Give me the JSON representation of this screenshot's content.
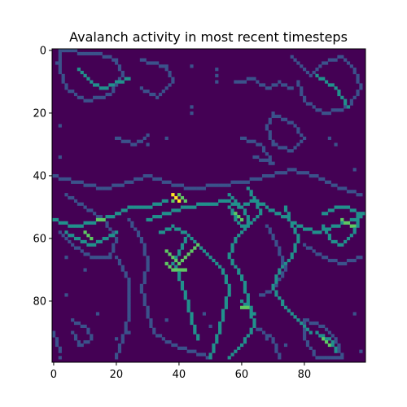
{
  "chart_data": {
    "type": "heatmap",
    "title": "Avalanch activity in most recent timesteps",
    "xlabel": "",
    "ylabel": "",
    "grid_size": [
      100,
      100
    ],
    "xlim": [
      -0.5,
      99.5
    ],
    "ylim": [
      99.5,
      -0.5
    ],
    "x_ticks": [
      0,
      20,
      40,
      60,
      80
    ],
    "y_ticks": [
      0,
      20,
      40,
      60,
      80
    ],
    "colormap": "viridis",
    "colorbar": false,
    "grid": false,
    "value_range": [
      0,
      4
    ],
    "background_value": 0,
    "colors": {
      "0": "#440154",
      "1": "#3b528b",
      "2": "#21918c",
      "3": "#5ec962",
      "4": "#fde725"
    },
    "regions": [
      {
        "kind": "polyline",
        "value": 1,
        "points": [
          [
            2,
            0
          ],
          [
            14,
            1
          ],
          [
            20,
            3
          ],
          [
            22,
            8
          ],
          [
            18,
            14
          ],
          [
            10,
            16
          ],
          [
            4,
            12
          ],
          [
            2,
            6
          ],
          [
            2,
            0
          ]
        ]
      },
      {
        "kind": "polyline",
        "value": 2,
        "points": [
          [
            8,
            6
          ],
          [
            12,
            10
          ],
          [
            16,
            12
          ],
          [
            20,
            10
          ],
          [
            24,
            9
          ]
        ]
      },
      {
        "kind": "polyline",
        "value": 1,
        "points": [
          [
            28,
            3
          ],
          [
            36,
            5
          ],
          [
            38,
            10
          ],
          [
            33,
            15
          ],
          [
            28,
            12
          ]
        ]
      },
      {
        "kind": "polyline",
        "value": 1,
        "points": [
          [
            76,
            2
          ],
          [
            82,
            8
          ],
          [
            86,
            4
          ],
          [
            92,
            2
          ],
          [
            96,
            6
          ],
          [
            98,
            12
          ],
          [
            94,
            18
          ],
          [
            86,
            20
          ],
          [
            80,
            16
          ],
          [
            78,
            10
          ]
        ]
      },
      {
        "kind": "polyline",
        "value": 2,
        "points": [
          [
            84,
            8
          ],
          [
            90,
            12
          ],
          [
            94,
            18
          ]
        ]
      },
      {
        "kind": "polyline",
        "value": 1,
        "points": [
          [
            58,
            10
          ],
          [
            64,
            9
          ],
          [
            68,
            12
          ],
          [
            72,
            10
          ],
          [
            76,
            12
          ]
        ]
      },
      {
        "kind": "polyline",
        "value": 1,
        "points": [
          [
            70,
            20
          ],
          [
            76,
            23
          ],
          [
            80,
            28
          ],
          [
            76,
            32
          ],
          [
            70,
            30
          ],
          [
            68,
            24
          ],
          [
            70,
            20
          ]
        ]
      },
      {
        "kind": "polyline",
        "value": 1,
        "points": [
          [
            60,
            28
          ],
          [
            66,
            30
          ],
          [
            70,
            36
          ],
          [
            64,
            34
          ]
        ]
      },
      {
        "kind": "polyline",
        "value": 1,
        "points": [
          [
            20,
            28
          ],
          [
            26,
            30
          ],
          [
            30,
            27
          ]
        ]
      },
      {
        "kind": "polyline",
        "value": 1,
        "points": [
          [
            0,
            40
          ],
          [
            8,
            42
          ],
          [
            16,
            44
          ],
          [
            24,
            42
          ],
          [
            30,
            40
          ],
          [
            36,
            42
          ],
          [
            44,
            44
          ],
          [
            52,
            43
          ],
          [
            60,
            42
          ],
          [
            68,
            40
          ],
          [
            76,
            38
          ],
          [
            84,
            40
          ],
          [
            92,
            44
          ],
          [
            98,
            46
          ]
        ]
      },
      {
        "kind": "polyline",
        "value": 1,
        "points": [
          [
            4,
            46
          ],
          [
            10,
            50
          ],
          [
            16,
            54
          ],
          [
            20,
            60
          ],
          [
            18,
            66
          ],
          [
            12,
            66
          ],
          [
            6,
            62
          ],
          [
            2,
            58
          ]
        ]
      },
      {
        "kind": "polyline",
        "value": 2,
        "points": [
          [
            0,
            54
          ],
          [
            6,
            56
          ],
          [
            12,
            55
          ],
          [
            18,
            53
          ],
          [
            24,
            50
          ],
          [
            30,
            50
          ],
          [
            36,
            48
          ]
        ]
      },
      {
        "kind": "polyline",
        "value": 2,
        "points": [
          [
            4,
            58
          ],
          [
            8,
            60
          ],
          [
            12,
            62
          ],
          [
            16,
            60
          ],
          [
            20,
            58
          ]
        ]
      },
      {
        "kind": "polyline",
        "value": 3,
        "points": [
          [
            10,
            58
          ],
          [
            12,
            60
          ]
        ]
      },
      {
        "kind": "polyline",
        "value": 3,
        "points": [
          [
            14,
            54
          ],
          [
            16,
            54
          ]
        ]
      },
      {
        "kind": "polyline",
        "value": 2,
        "points": [
          [
            30,
            54
          ],
          [
            36,
            52
          ],
          [
            42,
            50
          ],
          [
            48,
            49
          ],
          [
            56,
            48
          ],
          [
            60,
            50
          ],
          [
            64,
            47
          ],
          [
            68,
            50
          ],
          [
            72,
            52
          ],
          [
            78,
            56
          ],
          [
            84,
            58
          ],
          [
            90,
            56
          ],
          [
            96,
            54
          ],
          [
            99,
            52
          ]
        ]
      },
      {
        "kind": "polyline",
        "value": 2,
        "points": [
          [
            62,
            44
          ],
          [
            64,
            48
          ],
          [
            66,
            52
          ],
          [
            62,
            56
          ],
          [
            58,
            60
          ],
          [
            56,
            66
          ],
          [
            60,
            72
          ],
          [
            62,
            80
          ],
          [
            64,
            88
          ],
          [
            60,
            94
          ],
          [
            56,
            98
          ]
        ]
      },
      {
        "kind": "polyline",
        "value": 2,
        "points": [
          [
            56,
            46
          ],
          [
            60,
            50
          ],
          [
            62,
            54
          ],
          [
            60,
            58
          ]
        ]
      },
      {
        "kind": "polyline",
        "value": 2,
        "points": [
          [
            74,
            50
          ],
          [
            76,
            56
          ],
          [
            78,
            60
          ],
          [
            76,
            66
          ],
          [
            72,
            70
          ],
          [
            70,
            76
          ],
          [
            74,
            82
          ],
          [
            78,
            86
          ],
          [
            82,
            90
          ]
        ]
      },
      {
        "kind": "polyline",
        "value": 2,
        "points": [
          [
            34,
            58
          ],
          [
            38,
            56
          ],
          [
            42,
            58
          ],
          [
            46,
            62
          ],
          [
            50,
            66
          ],
          [
            54,
            70
          ],
          [
            56,
            76
          ],
          [
            54,
            84
          ],
          [
            52,
            92
          ],
          [
            50,
            98
          ]
        ]
      },
      {
        "kind": "polyline",
        "value": 1,
        "points": [
          [
            24,
            54
          ],
          [
            28,
            60
          ],
          [
            30,
            68
          ],
          [
            28,
            76
          ],
          [
            30,
            84
          ],
          [
            32,
            90
          ],
          [
            38,
            94
          ],
          [
            44,
            96
          ],
          [
            50,
            98
          ]
        ]
      },
      {
        "kind": "polyline",
        "value": 2,
        "points": [
          [
            42,
            60
          ],
          [
            40,
            64
          ],
          [
            38,
            68
          ],
          [
            40,
            72
          ],
          [
            42,
            78
          ],
          [
            44,
            86
          ],
          [
            46,
            92
          ]
        ]
      },
      {
        "kind": "polyline",
        "value": 1,
        "points": [
          [
            20,
            66
          ],
          [
            24,
            74
          ],
          [
            24,
            84
          ],
          [
            22,
            92
          ],
          [
            20,
            98
          ]
        ]
      },
      {
        "kind": "polyline",
        "value": 3,
        "points": [
          [
            36,
            64
          ],
          [
            38,
            66
          ],
          [
            40,
            68
          ],
          [
            42,
            66
          ],
          [
            44,
            64
          ],
          [
            46,
            62
          ]
        ]
      },
      {
        "kind": "polyline",
        "value": 3,
        "points": [
          [
            36,
            68
          ],
          [
            38,
            70
          ],
          [
            42,
            70
          ]
        ]
      },
      {
        "kind": "polyline",
        "value": 4,
        "points": [
          [
            38,
            46
          ],
          [
            40,
            48
          ]
        ]
      },
      {
        "kind": "polyline",
        "value": 3,
        "points": [
          [
            38,
            48
          ],
          [
            40,
            46
          ],
          [
            42,
            48
          ]
        ]
      },
      {
        "kind": "polyline",
        "value": 2,
        "points": [
          [
            56,
            50
          ],
          [
            58,
            54
          ],
          [
            60,
            56
          ]
        ]
      },
      {
        "kind": "polyline",
        "value": 3,
        "points": [
          [
            58,
            52
          ],
          [
            60,
            54
          ]
        ]
      },
      {
        "kind": "polyline",
        "value": 2,
        "points": [
          [
            60,
            80
          ],
          [
            62,
            82
          ],
          [
            64,
            84
          ]
        ]
      },
      {
        "kind": "polyline",
        "value": 3,
        "points": [
          [
            60,
            82
          ],
          [
            62,
            82
          ]
        ]
      },
      {
        "kind": "polyline",
        "value": 2,
        "points": [
          [
            86,
            52
          ],
          [
            90,
            50
          ],
          [
            94,
            50
          ],
          [
            98,
            52
          ],
          [
            96,
            58
          ],
          [
            92,
            62
          ],
          [
            88,
            60
          ],
          [
            86,
            56
          ]
        ]
      },
      {
        "kind": "polyline",
        "value": 3,
        "points": [
          [
            92,
            54
          ],
          [
            96,
            56
          ]
        ]
      },
      {
        "kind": "polyline",
        "value": 1,
        "points": [
          [
            80,
            62
          ],
          [
            86,
            66
          ],
          [
            92,
            68
          ],
          [
            98,
            66
          ]
        ]
      },
      {
        "kind": "polyline",
        "value": 1,
        "points": [
          [
            68,
            56
          ],
          [
            72,
            64
          ],
          [
            74,
            70
          ],
          [
            70,
            76
          ],
          [
            66,
            78
          ]
        ]
      },
      {
        "kind": "polyline",
        "value": 1,
        "points": [
          [
            80,
            86
          ],
          [
            86,
            88
          ],
          [
            90,
            92
          ],
          [
            92,
            98
          ],
          [
            84,
            98
          ],
          [
            80,
            92
          ],
          [
            80,
            86
          ]
        ]
      },
      {
        "kind": "polyline",
        "value": 2,
        "points": [
          [
            84,
            90
          ],
          [
            88,
            92
          ],
          [
            90,
            96
          ]
        ]
      },
      {
        "kind": "polyline",
        "value": 3,
        "points": [
          [
            86,
            92
          ],
          [
            88,
            94
          ]
        ]
      },
      {
        "kind": "polyline",
        "value": 1,
        "points": [
          [
            6,
            86
          ],
          [
            10,
            88
          ],
          [
            12,
            92
          ],
          [
            8,
            94
          ],
          [
            6,
            90
          ]
        ]
      },
      {
        "kind": "polyline",
        "value": 1,
        "points": [
          [
            64,
            88
          ],
          [
            70,
            92
          ],
          [
            72,
            98
          ]
        ]
      },
      {
        "kind": "polyline",
        "value": 1,
        "points": [
          [
            0,
            90
          ],
          [
            2,
            96
          ]
        ]
      },
      {
        "kind": "dots",
        "value": 1,
        "points": [
          [
            1,
            4
          ],
          [
            2,
            24
          ],
          [
            2,
            34
          ],
          [
            44,
            5
          ],
          [
            52,
            6
          ],
          [
            52,
            8
          ],
          [
            52,
            10
          ],
          [
            44,
            18
          ],
          [
            44,
            20
          ],
          [
            36,
            28
          ],
          [
            88,
            28
          ],
          [
            90,
            30
          ],
          [
            96,
            38
          ],
          [
            4,
            66
          ],
          [
            4,
            78
          ],
          [
            14,
            84
          ],
          [
            24,
            90
          ],
          [
            20,
            92
          ],
          [
            36,
            86
          ],
          [
            48,
            84
          ],
          [
            50,
            88
          ],
          [
            68,
            92
          ],
          [
            74,
            94
          ],
          [
            96,
            84
          ],
          [
            98,
            96
          ],
          [
            2,
            98
          ],
          [
            10,
            70
          ],
          [
            30,
            30
          ]
        ]
      }
    ]
  }
}
